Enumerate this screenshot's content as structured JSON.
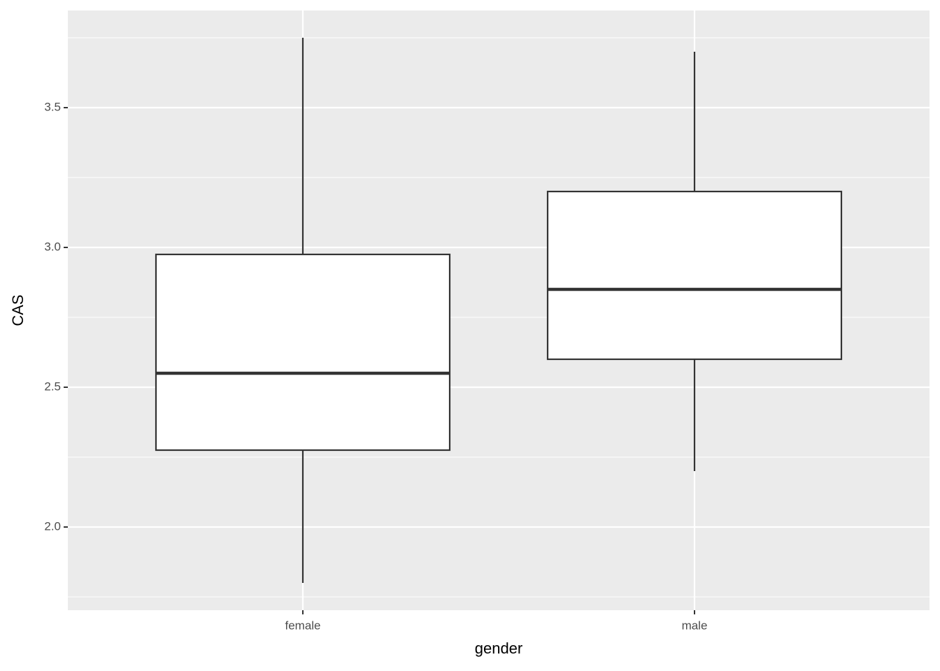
{
  "chart_data": {
    "type": "boxplot",
    "x_label": "gender",
    "y_label": "CAS",
    "categories": [
      "female",
      "male"
    ],
    "boxes": [
      {
        "whisker_low": 1.8,
        "q1": 2.275,
        "median": 2.55,
        "q3": 2.975,
        "whisker_high": 3.75
      },
      {
        "whisker_low": 2.2,
        "q1": 2.6,
        "median": 2.85,
        "q3": 3.2,
        "whisker_high": 3.7
      }
    ],
    "fill": "#ffffff",
    "line_color": "#333333",
    "ylim": [
      1.7025,
      3.8475
    ],
    "yticks": [
      {
        "value": 2,
        "label": "2.0"
      },
      2.5,
      {
        "value": 3,
        "label": "3.0"
      },
      3.5
    ],
    "minor_yticks": [
      1.75,
      2.25,
      2.75,
      3.25,
      3.75
    ],
    "grid": true,
    "panel_color": "#ebebeb"
  }
}
